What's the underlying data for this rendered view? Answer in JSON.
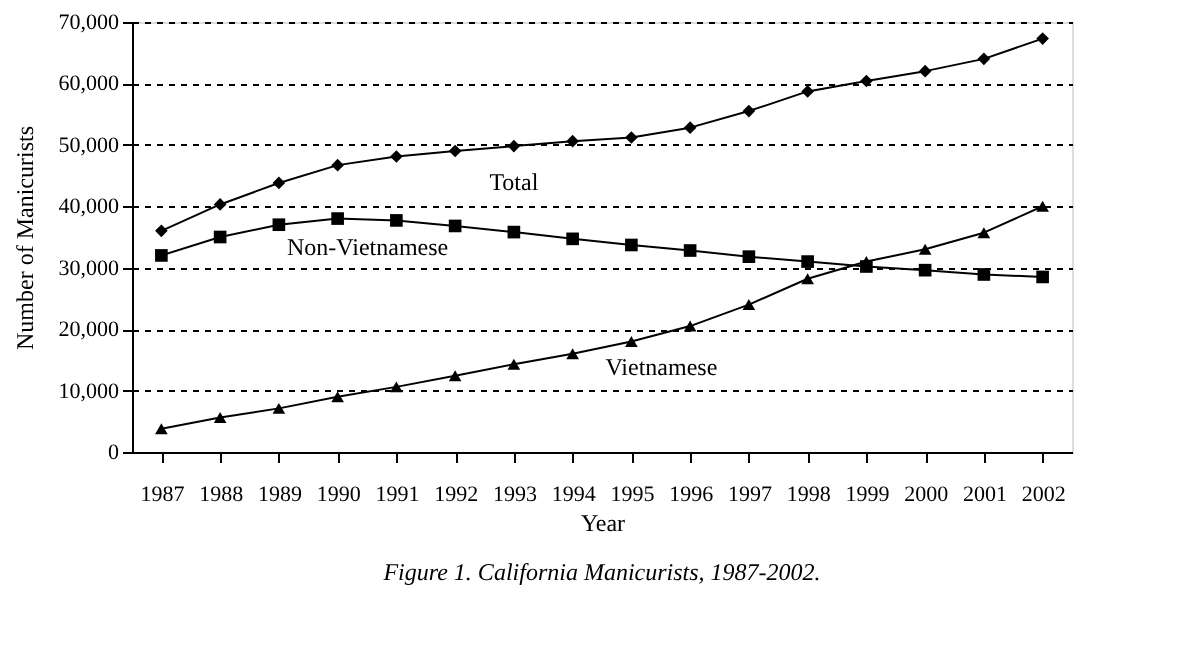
{
  "chart_data": {
    "type": "line",
    "title": "Figure 1.  California Manicurists, 1987-2002.",
    "xlabel": "Year",
    "ylabel": "Number of Manicurists",
    "categories": [
      "1987",
      "1988",
      "1989",
      "1990",
      "1991",
      "1992",
      "1993",
      "1994",
      "1995",
      "1996",
      "1997",
      "1998",
      "1999",
      "2000",
      "2001",
      "2002"
    ],
    "series": [
      {
        "name": "Total",
        "color": "#000000",
        "marker": "diamond",
        "values": [
          36000,
          40300,
          43800,
          46700,
          48100,
          49000,
          49800,
          50600,
          51200,
          52800,
          55500,
          58700,
          60400,
          62000,
          64000,
          67300
        ]
      },
      {
        "name": "Non-Vietnamese",
        "color": "#000000",
        "marker": "square",
        "values": [
          32000,
          35000,
          37000,
          38000,
          37700,
          36800,
          35800,
          34700,
          33700,
          32800,
          31800,
          31000,
          30200,
          29600,
          28900,
          28500
        ]
      },
      {
        "name": "Vietnamese",
        "color": "#000000",
        "marker": "triangle",
        "values": [
          3800,
          5600,
          7100,
          9000,
          10600,
          12400,
          14300,
          16000,
          18000,
          20500,
          24000,
          28200,
          31000,
          33000,
          35700,
          40000
        ]
      }
    ],
    "ylim": [
      0,
      70000
    ],
    "yticks": [
      0,
      {
        "value": 10000,
        "label": "10,000"
      },
      {
        "value": 20000,
        "label": "20,000"
      },
      {
        "value": 30000,
        "label": "30,000"
      },
      {
        "value": 40000,
        "label": "40,000"
      },
      {
        "value": 50000,
        "label": "50,000"
      },
      {
        "value": 60000,
        "label": "60,000"
      },
      {
        "value": 70000,
        "label": "70,000"
      }
    ],
    "grid": "y",
    "legend": false,
    "line_style": "solid"
  }
}
